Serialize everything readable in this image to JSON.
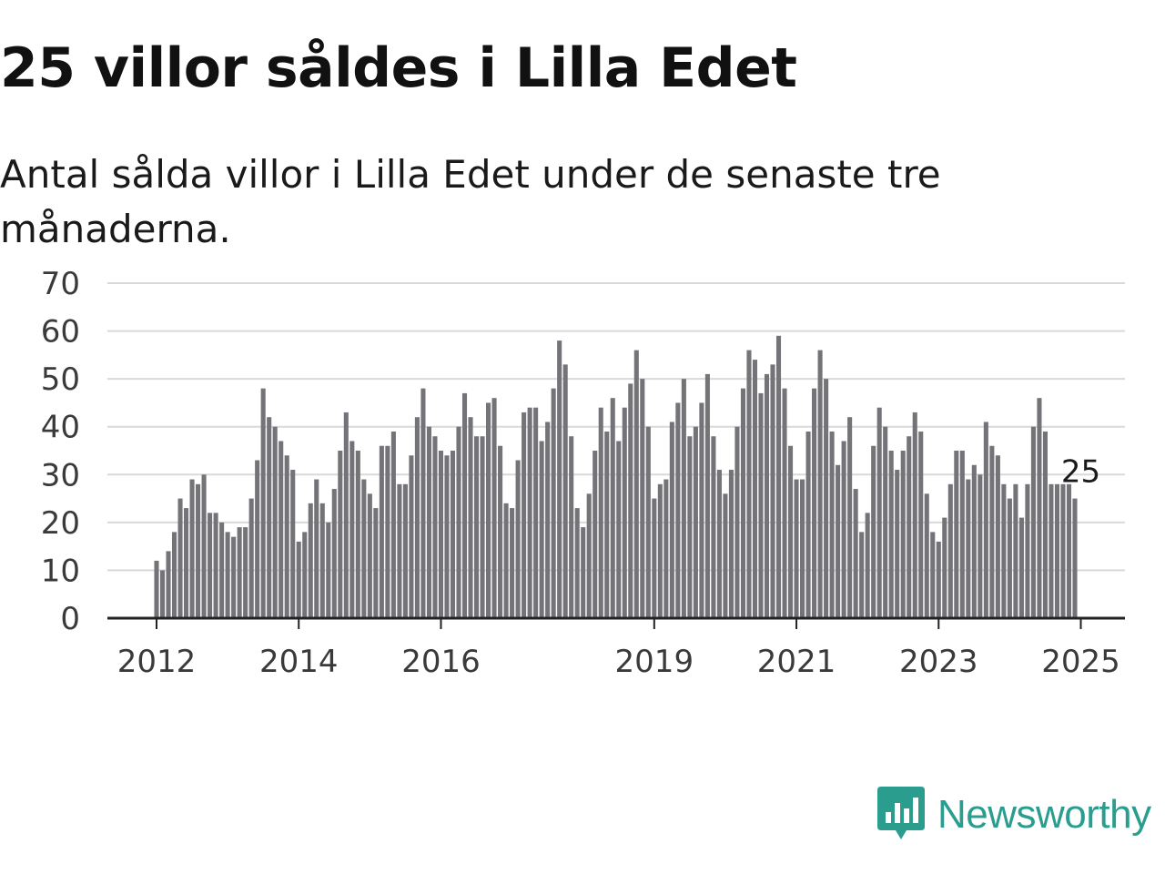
{
  "title": "25 villor såldes i Lilla Edet",
  "subtitle": "Antal sålda villor i Lilla Edet under de senaste tre månaderna.",
  "brand": {
    "name": "Newsworthy",
    "color": "#2a9d8f",
    "icon": "bar-chart-speech-bubble-icon"
  },
  "colors": {
    "bar": "#747378",
    "highlight": "#1f9a94",
    "grid": "#d9d9d9",
    "axis": "#222222",
    "tick_text": "#3a3a3a"
  },
  "chart_data": {
    "type": "bar",
    "title": "25 villor såldes i Lilla Edet",
    "subtitle": "Antal sålda villor i Lilla Edet under de senaste tre månaderna.",
    "xlabel": "",
    "ylabel": "",
    "ylim": [
      0,
      70
    ],
    "yticks": [
      0,
      10,
      20,
      30,
      40,
      50,
      60,
      70
    ],
    "grid": true,
    "legend": "none",
    "x_start": "2012-01",
    "x_end": "2025-01",
    "xtick_labels": [
      {
        "label": "2012",
        "date": "2012-01"
      },
      {
        "label": "2014",
        "date": "2014-01"
      },
      {
        "label": "2016",
        "date": "2016-01"
      },
      {
        "label": "2019",
        "date": "2019-01"
      },
      {
        "label": "2021",
        "date": "2021-01"
      },
      {
        "label": "2023",
        "date": "2023-01"
      },
      {
        "label": "2025",
        "date": "2025-01"
      }
    ],
    "values": [
      12,
      10,
      14,
      18,
      25,
      23,
      29,
      28,
      30,
      22,
      22,
      20,
      18,
      17,
      19,
      19,
      25,
      33,
      48,
      42,
      40,
      37,
      34,
      31,
      16,
      18,
      24,
      29,
      24,
      20,
      27,
      35,
      43,
      37,
      35,
      29,
      26,
      23,
      36,
      36,
      39,
      28,
      28,
      34,
      42,
      48,
      40,
      38,
      35,
      34,
      35,
      40,
      47,
      42,
      38,
      38,
      45,
      46,
      36,
      24,
      23,
      33,
      43,
      44,
      44,
      37,
      41,
      48,
      58,
      53,
      38,
      23,
      19,
      26,
      35,
      44,
      39,
      46,
      37,
      44,
      49,
      56,
      50,
      40,
      25,
      28,
      29,
      41,
      45,
      50,
      38,
      40,
      45,
      51,
      38,
      31,
      26,
      31,
      40,
      48,
      56,
      54,
      47,
      51,
      53,
      59,
      48,
      36,
      29,
      29,
      39,
      48,
      56,
      50,
      39,
      32,
      37,
      42,
      27,
      18,
      22,
      36,
      44,
      40,
      35,
      31,
      35,
      38,
      43,
      39,
      26,
      18,
      16,
      21,
      28,
      35,
      35,
      29,
      32,
      30,
      41,
      36,
      34,
      28,
      25,
      28,
      21,
      28,
      40,
      46,
      39,
      28,
      28,
      28,
      28,
      25
    ],
    "highlight": {
      "label": "25",
      "value": 25,
      "index": 156
    }
  }
}
